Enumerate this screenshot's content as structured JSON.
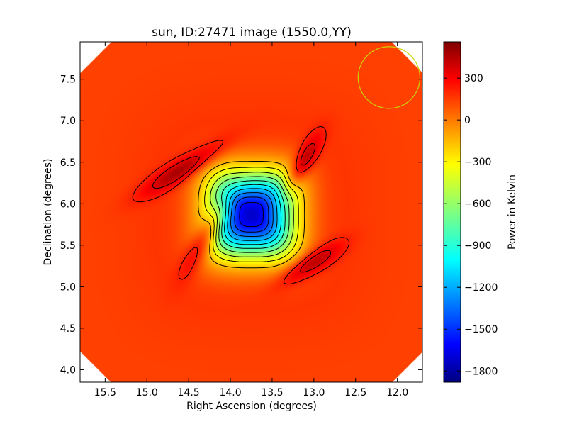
{
  "chart_data": {
    "type": "heatmap",
    "title": "sun, ID:27471 image (1550.0,YY)",
    "xlabel": "Right Ascension (degrees)",
    "ylabel": "Declination (degrees)",
    "xlim": [
      15.8,
      11.7
    ],
    "ylim": [
      3.85,
      7.95
    ],
    "x_reversed": true,
    "x_ticks": [
      "15.5",
      "15.0",
      "14.5",
      "14.0",
      "13.5",
      "13.0",
      "12.5",
      "12.0"
    ],
    "x_tick_values": [
      15.5,
      15.0,
      14.5,
      14.0,
      13.5,
      13.0,
      12.5,
      12.0
    ],
    "y_ticks": [
      "4.0",
      "4.5",
      "5.0",
      "5.5",
      "6.0",
      "6.5",
      "7.0",
      "7.5"
    ],
    "y_tick_values": [
      4.0,
      4.5,
      5.0,
      5.5,
      6.0,
      6.5,
      7.0,
      7.5
    ],
    "colorbar": {
      "label": "Power in Kelvin",
      "min": -1880,
      "max": 560,
      "ticks": [
        "300",
        "0",
        "−300",
        "−600",
        "−900",
        "−1200",
        "−1500",
        "−1800"
      ],
      "tick_values": [
        300,
        0,
        -300,
        -600,
        -900,
        -1200,
        -1500,
        -1800
      ],
      "colormap": "jet"
    },
    "image": {
      "center_ra": 13.75,
      "center_dec": 5.87,
      "min_value": -1880,
      "background_value": 100,
      "lobe_peak_value": 520
    },
    "beam_circle": {
      "center_ra": 12.1,
      "center_dec": 7.52,
      "radius_deg": 0.37,
      "color": "#c8d400"
    },
    "contour_color": "#000000"
  }
}
